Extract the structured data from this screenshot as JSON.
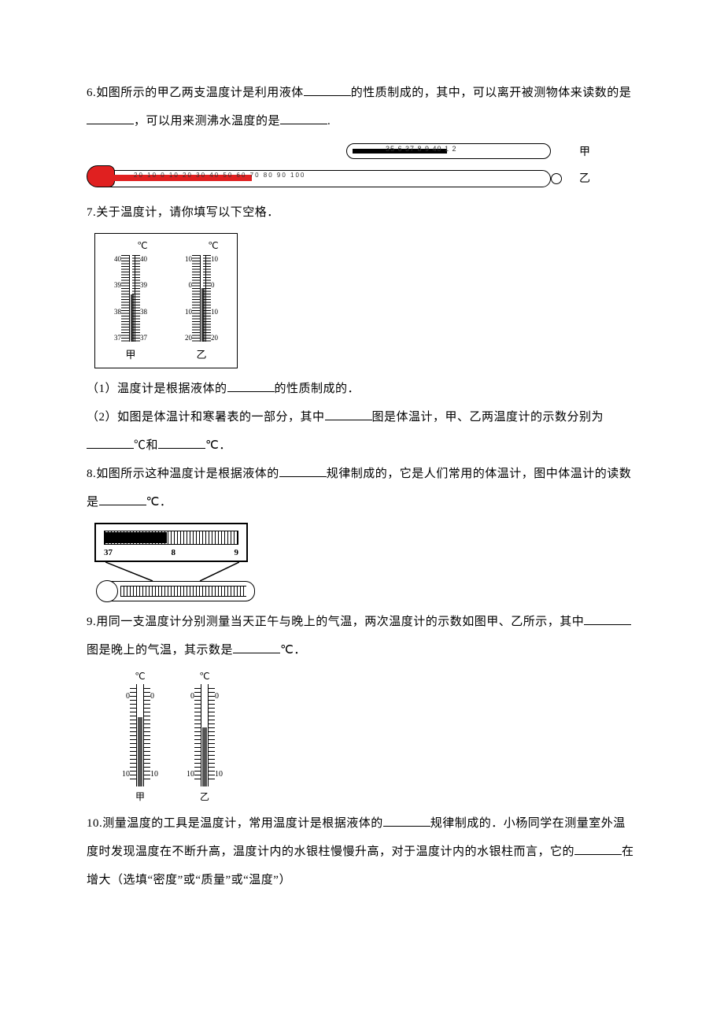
{
  "q6": {
    "text_1": "6.如图所示的甲乙两支温度计是利用液体",
    "text_2": "的性质制成的，其中，可以离开被测物体来读数的是",
    "text_3": "，可以用来测沸水温度的是",
    "text_4": ".",
    "label_jia": "甲",
    "label_yi": "乙",
    "scale_jia": "35  6  37  8  9  40  1  2",
    "scale_yi": "20 10 0 10 20 30 40 50 60 70 80 90 100",
    "colors": {
      "mercury_red": "#e02020",
      "mercury_black": "#000000"
    }
  },
  "q7": {
    "intro": "7.关于温度计，请你填写以下空格．",
    "unit": "℃",
    "scale_jia": [
      "40",
      "39",
      "38",
      "37"
    ],
    "scale_yi_left": [
      "10",
      "0",
      "10",
      "20"
    ],
    "scale_yi_right": [
      "10",
      "0",
      "10",
      "20"
    ],
    "label_jia": "甲",
    "label_yi": "乙",
    "liquid_jia_pct": 55,
    "liquid_yi_pct": 62,
    "line1_a": "（1）温度计是根据液体的",
    "line1_b": "的性质制成的．",
    "line2_a": "（2）如图是体温计和寒暑表的一部分，其中",
    "line2_b": "图是体温计，甲、乙两温度计的示数分别为",
    "line2_c": "℃和",
    "line2_d": "℃．"
  },
  "q8": {
    "text_a": "8.如图所示这种温度计是根据液体的",
    "text_b": "规律制成的，它是人们常用的体温计，图中体温计的读数是",
    "text_c": "℃．",
    "nums": [
      "37",
      "8",
      "9"
    ]
  },
  "q9": {
    "text_a": "9.用同一支温度计分别测量当天正午与晚上的气温，两次温度计的示数如图甲、乙所示，其中",
    "text_b": "图是晚上的气温，其示数是",
    "text_c": "℃．",
    "unit": "℃",
    "labels": [
      "0",
      "10"
    ],
    "label_jia": "甲",
    "label_yi": "乙",
    "liquid_jia_pct": 68,
    "liquid_yi_pct": 58
  },
  "q10": {
    "text_a": "10.测量温度的工具是温度计，常用温度计是根据液体的",
    "text_b": "规律制成的．小杨同学在测量室外温度时发现温度在不断升高，温度计内的水银柱慢慢升高，对于温度计内的水银柱而言，它的",
    "text_c": "在增大（选填“密度”或“质量”或“温度”）"
  }
}
